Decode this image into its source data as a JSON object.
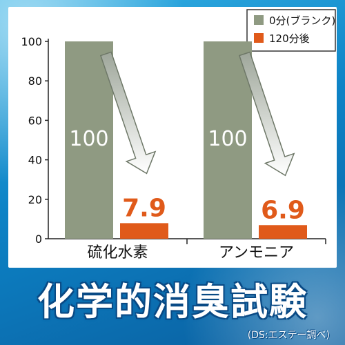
{
  "chart_data": {
    "type": "bar",
    "categories": [
      "硫化水素",
      "アンモニア"
    ],
    "series": [
      {
        "name": "0分(ブランク)",
        "values": [
          100,
          100
        ],
        "color": "#8f9a82"
      },
      {
        "name": "120分後",
        "values": [
          7.9,
          6.9
        ],
        "color": "#e05a1a"
      }
    ],
    "data_labels": [
      "100",
      "7.9",
      "100",
      "6.9"
    ],
    "yticks": [
      "0",
      "20",
      "40",
      "60",
      "80",
      "100"
    ],
    "ylim": [
      0,
      100
    ],
    "legend_position": "top-right"
  },
  "footer": {
    "title": "化学的消臭試験",
    "note": "(DS:エステー調べ)"
  }
}
